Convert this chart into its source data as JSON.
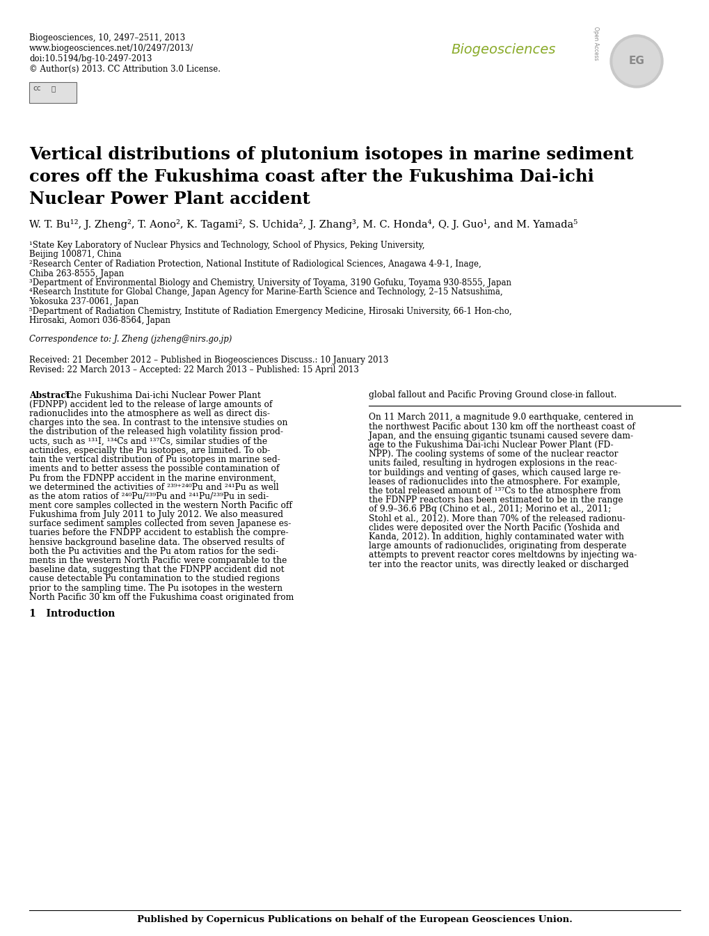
{
  "journal_info_line1": "Biogeosciences, 10, 2497–2511, 2013",
  "journal_info_line2": "www.biogeosciences.net/10/2497/2013/",
  "journal_info_line3": "doi:10.5194/bg-10-2497-2013",
  "journal_info_line4": "© Author(s) 2013. CC Attribution 3.0 License.",
  "journal_name": "Biogeosciences",
  "title_line1": "Vertical distributions of plutonium isotopes in marine sediment",
  "title_line2": "cores off the Fukushima coast after the Fukushima Dai-ichi",
  "title_line3": "Nuclear Power Plant accident",
  "authors_parts": [
    {
      "text": "W. T. Bu",
      "bold": false
    },
    {
      "text": "1,2",
      "bold": false,
      "super": true
    },
    {
      "text": ", J. Zheng",
      "bold": false
    },
    {
      "text": "2",
      "bold": false,
      "super": true
    },
    {
      "text": ", T. Aono",
      "bold": false
    },
    {
      "text": "2",
      "bold": false,
      "super": true
    },
    {
      "text": ", K. Tagami",
      "bold": false
    },
    {
      "text": "2",
      "bold": false,
      "super": true
    },
    {
      "text": ", S. Uchida",
      "bold": false
    },
    {
      "text": "2",
      "bold": false,
      "super": true
    },
    {
      "text": ", J. Zhang",
      "bold": false
    },
    {
      "text": "3",
      "bold": false,
      "super": true
    },
    {
      "text": ", M. C. Honda",
      "bold": false
    },
    {
      "text": "4",
      "bold": false,
      "super": true
    },
    {
      "text": ", Q. J. Guo",
      "bold": false
    },
    {
      "text": "1",
      "bold": false,
      "super": true
    },
    {
      "text": ", and M. Yamada",
      "bold": false
    },
    {
      "text": "5",
      "bold": false,
      "super": true
    }
  ],
  "affil1": "¹State Key Laboratory of Nuclear Physics and Technology, School of Physics, Peking University,",
  "affil1b": "Beijing 100871, China",
  "affil2": "²Research Center of Radiation Protection, National Institute of Radiological Sciences, Anagawa 4-9-1, Inage,",
  "affil2b": "Chiba 263-8555, Japan",
  "affil3": "³Department of Environmental Biology and Chemistry, University of Toyama, 3190 Gofuku, Toyama 930-8555, Japan",
  "affil4": "⁴Research Institute for Global Change, Japan Agency for Marine-Earth Science and Technology, 2–15 Natsushima,",
  "affil4b": "Yokosuka 237-0061, Japan",
  "affil5": "⁵Department of Radiation Chemistry, Institute of Radiation Emergency Medicine, Hirosaki University, 66-1 Hon-cho,",
  "affil5b": "Hirosaki, Aomori 036-8564, Japan",
  "correspondence": "Correspondence to: J. Zheng (jzheng@nirs.go.jp)",
  "received": "Received: 21 December 2012 – Published in Biogeosciences Discuss.: 10 January 2013",
  "revised": "Revised: 22 March 2013 – Accepted: 22 March 2013 – Published: 15 April 2013",
  "abstract_label": "Abstract.",
  "abstract_col1_lines": [
    "The Fukushima Dai-ichi Nuclear Power Plant",
    "(FDNPP) accident led to the release of large amounts of",
    "radionuclides into the atmosphere as well as direct dis-",
    "charges into the sea. In contrast to the intensive studies on",
    "the distribution of the released high volatility fission prod-",
    "ucts, such as ¹³¹I, ¹³⁴Cs and ¹³⁷Cs, similar studies of the",
    "actinides, especially the Pu isotopes, are limited. To ob-",
    "tain the vertical distribution of Pu isotopes in marine sed-",
    "iments and to better assess the possible contamination of",
    "Pu from the FDNPP accident in the marine environment,",
    "we determined the activities of ²³⁹⁺²⁴⁰Pu and ²⁴¹Pu as well",
    "as the atom ratios of ²⁴⁰Pu/²³⁹Pu and ²⁴¹Pu/²³⁹Pu in sedi-",
    "ment core samples collected in the western North Pacific off",
    "Fukushima from July 2011 to July 2012. We also measured",
    "surface sediment samples collected from seven Japanese es-",
    "tuaries before the FNDPP accident to establish the compre-",
    "hensive background baseline data. The observed results of",
    "both the Pu activities and the Pu atom ratios for the sedi-",
    "ments in the western North Pacific were comparable to the",
    "baseline data, suggesting that the FDNPP accident did not",
    "cause detectable Pu contamination to the studied regions",
    "prior to the sampling time. The Pu isotopes in the western",
    "North Pacific 30 km off the Fukushima coast originated from"
  ],
  "abstract_col2_lines": [
    "global fallout and Pacific Proving Ground close-in fallout."
  ],
  "section1_num": "1",
  "section1_title": "Introduction",
  "intro_col2_lines": [
    "On 11 March 2011, a magnitude 9.0 earthquake, centered in",
    "the northwest Pacific about 130 km off the northeast coast of",
    "Japan, and the ensuing gigantic tsunami caused severe dam-",
    "age to the Fukushima Dai-ichi Nuclear Power Plant (FD-",
    "NPP). The cooling systems of some of the nuclear reactor",
    "units failed, resulting in hydrogen explosions in the reac-",
    "tor buildings and venting of gases, which caused large re-",
    "leases of radionuclides into the atmosphere. For example,",
    "the total released amount of ¹³⁷Cs to the atmosphere from",
    "the FDNPP reactors has been estimated to be in the range",
    "of 9.9–36.6 PBq (Chino et al., 2011; Morino et al., 2011;",
    "Stohl et al., 2012). More than 70% of the released radionu-",
    "clides were deposited over the North Pacific (Yoshida and",
    "Kanda, 2012). In addition, highly contaminated water with",
    "large amounts of radionuclides, originating from desperate",
    "attempts to prevent reactor cores meltdowns by injecting wa-",
    "ter into the reactor units, was directly leaked or discharged"
  ],
  "published_by": "Published by Copernicus Publications on behalf of the European Geosciences Union.",
  "bg_color": "#ffffff",
  "text_color": "#000000",
  "journal_color": "#8aab2a",
  "header_info_fontsize": 8.5,
  "title_fontsize": 17.5,
  "authors_fontsize": 10.5,
  "affil_fontsize": 8.5,
  "body_fontsize": 8.8,
  "section_fontsize": 10,
  "footer_fontsize": 9.5
}
